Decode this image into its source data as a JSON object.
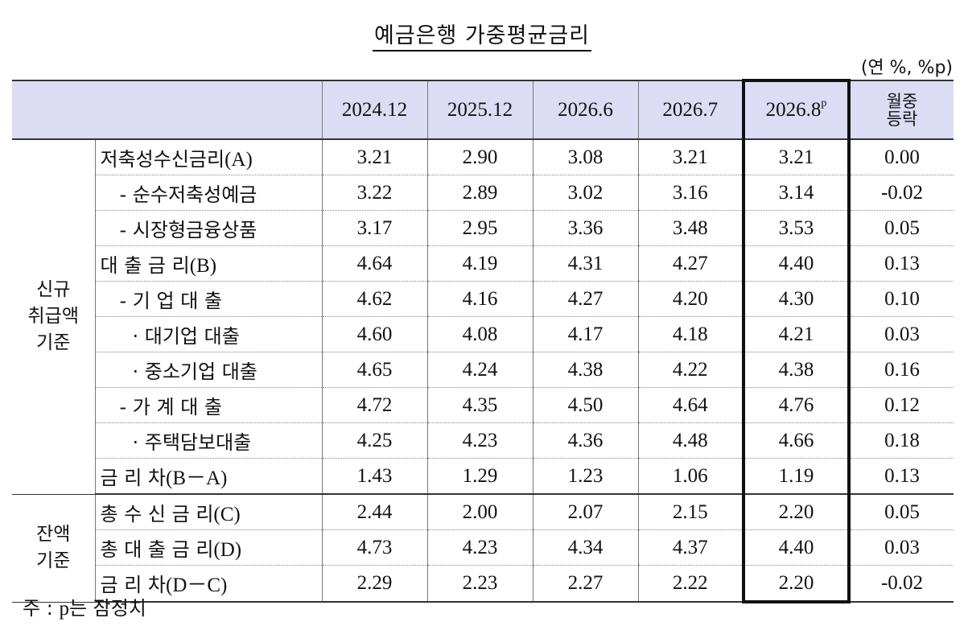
{
  "title": "예금은행 가중평균금리",
  "unit": "(연 %, %p)",
  "columns": {
    "c1": "2024.12",
    "c2": "2025.12",
    "c3": "2026.6",
    "c4": "2026.7",
    "c5_main": "2026.8",
    "c5_sup": "p",
    "chg_line1": "월중",
    "chg_line2": "등락"
  },
  "groups": {
    "new": {
      "l1": "신규",
      "l2": "취급액",
      "l3": "기준"
    },
    "bal": {
      "l1": "잔액",
      "l2": "기준"
    }
  },
  "rows": [
    {
      "lbl_kr": "저축성수신금리",
      "lbl_lat": "(A)",
      "v": [
        "3.21",
        "2.90",
        "3.08",
        "3.21",
        "3.21",
        "0.00"
      ]
    },
    {
      "lbl_kr": "- 순수저축성예금",
      "lbl_lat": "",
      "v": [
        "3.22",
        "2.89",
        "3.02",
        "3.16",
        "3.14",
        "-0.02"
      ]
    },
    {
      "lbl_kr": "- 시장형금융상품",
      "lbl_lat": "",
      "v": [
        "3.17",
        "2.95",
        "3.36",
        "3.48",
        "3.53",
        "0.05"
      ]
    },
    {
      "lbl_kr": "대 출 금 리",
      "lbl_lat": "(B)",
      "v": [
        "4.64",
        "4.19",
        "4.31",
        "4.27",
        "4.40",
        "0.13"
      ]
    },
    {
      "lbl_kr": "- 기 업 대 출",
      "lbl_lat": "",
      "v": [
        "4.62",
        "4.16",
        "4.27",
        "4.20",
        "4.30",
        "0.10"
      ]
    },
    {
      "lbl_kr": "· 대기업 대출",
      "lbl_lat": "",
      "v": [
        "4.60",
        "4.08",
        "4.17",
        "4.18",
        "4.21",
        "0.03"
      ]
    },
    {
      "lbl_kr": "· 중소기업 대출",
      "lbl_lat": "",
      "v": [
        "4.65",
        "4.24",
        "4.38",
        "4.22",
        "4.38",
        "0.16"
      ]
    },
    {
      "lbl_kr": "- 가 계 대 출",
      "lbl_lat": "",
      "v": [
        "4.72",
        "4.35",
        "4.50",
        "4.64",
        "4.76",
        "0.12"
      ]
    },
    {
      "lbl_kr": "· 주택담보대출",
      "lbl_lat": "",
      "v": [
        "4.25",
        "4.23",
        "4.36",
        "4.48",
        "4.66",
        "0.18"
      ]
    },
    {
      "lbl_kr": "금 리 차",
      "lbl_lat": "(B－A)",
      "v": [
        "1.43",
        "1.29",
        "1.23",
        "1.06",
        "1.19",
        "0.13"
      ]
    },
    {
      "lbl_kr": "총 수 신 금 리",
      "lbl_lat": "(C)",
      "v": [
        "2.44",
        "2.00",
        "2.07",
        "2.15",
        "2.20",
        "0.05"
      ]
    },
    {
      "lbl_kr": "총 대 출 금 리",
      "lbl_lat": "(D)",
      "v": [
        "4.73",
        "4.23",
        "4.34",
        "4.37",
        "4.40",
        "0.03"
      ]
    },
    {
      "lbl_kr": "금 리 차",
      "lbl_lat": "(D－C)",
      "v": [
        "2.29",
        "2.23",
        "2.27",
        "2.22",
        "2.20",
        "-0.02"
      ]
    }
  ],
  "note": {
    "prefix": "주 : ",
    "lat": "p",
    "rest": "는 잠정치"
  }
}
